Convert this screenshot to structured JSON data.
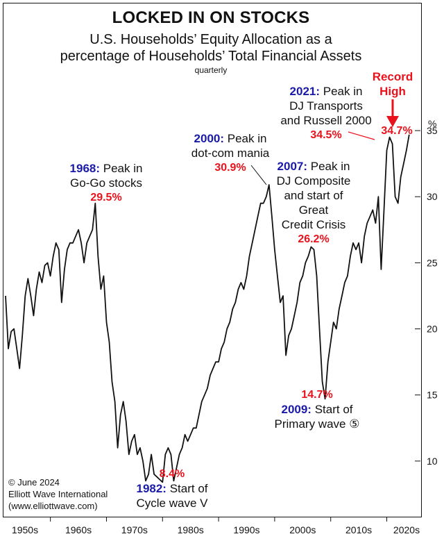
{
  "chart_data": {
    "type": "line",
    "title": "LOCKED IN ON STOCKS",
    "subtitle_line1": "U.S. Households’ Equity Allocation as a",
    "subtitle_line2": "percentage of Households’ Total Financial Assets",
    "frequency_note": "quarterly",
    "y_unit_label": "%",
    "ylim": [
      6,
      37
    ],
    "yticks": [
      10,
      15,
      20,
      25,
      30,
      35
    ],
    "xlim": [
      1952,
      2026
    ],
    "xtick_labels": [
      "1950s",
      "1960s",
      "1970s",
      "1980s",
      "1990s",
      "2000s",
      "2010s",
      "2020s"
    ],
    "grid": false,
    "series": [
      {
        "x": [
          1952.0,
          1952.5,
          1953.0,
          1953.5,
          1954.0,
          1954.5,
          1955.0,
          1955.5,
          1956.0,
          1956.5,
          1957.0,
          1957.5,
          1958.0,
          1958.5,
          1959.0,
          1959.5,
          1960.0,
          1960.5,
          1961.0,
          1961.5,
          1962.0,
          1962.5,
          1963.0,
          1963.5,
          1964.0,
          1964.5,
          1965.0,
          1965.5,
          1966.0,
          1966.5,
          1967.0,
          1967.5,
          1968.0,
          1968.5,
          1969.0,
          1969.5,
          1970.0,
          1970.5,
          1971.0,
          1971.5,
          1972.0,
          1972.5,
          1973.0,
          1973.5,
          1974.0,
          1974.5,
          1975.0,
          1975.5,
          1976.0,
          1976.5,
          1977.0,
          1977.5,
          1978.0,
          1978.5,
          1979.0,
          1979.5,
          1980.0,
          1980.5,
          1981.0,
          1981.5,
          1982.0,
          1982.5,
          1983.0,
          1983.5,
          1984.0,
          1984.5,
          1985.0,
          1985.5,
          1986.0,
          1986.5,
          1987.0,
          1987.5,
          1988.0,
          1988.5,
          1989.0,
          1989.5,
          1990.0,
          1990.5,
          1991.0,
          1991.5,
          1992.0,
          1992.5,
          1993.0,
          1993.5,
          1994.0,
          1994.5,
          1995.0,
          1995.5,
          1996.0,
          1996.5,
          1997.0,
          1997.5,
          1998.0,
          1998.5,
          1999.0,
          1999.5,
          2000.0,
          2000.5,
          2001.0,
          2001.5,
          2002.0,
          2002.5,
          2003.0,
          2003.5,
          2004.0,
          2004.5,
          2005.0,
          2005.5,
          2006.0,
          2006.5,
          2007.0,
          2007.5,
          2008.0,
          2008.5,
          2009.0,
          2009.5,
          2010.0,
          2010.5,
          2011.0,
          2011.5,
          2012.0,
          2012.5,
          2013.0,
          2013.5,
          2014.0,
          2014.5,
          2015.0,
          2015.5,
          2016.0,
          2016.5,
          2017.0,
          2017.5,
          2018.0,
          2018.5,
          2019.0,
          2019.5,
          2020.0,
          2020.5,
          2021.0,
          2021.5,
          2022.0,
          2022.5,
          2023.0,
          2023.5,
          2024.0
        ],
        "y": [
          22.5,
          18.5,
          19.8,
          20.0,
          18.5,
          17.0,
          19.5,
          22.5,
          23.8,
          22.5,
          21.0,
          23.0,
          24.3,
          23.5,
          24.8,
          25.0,
          24.0,
          25.5,
          26.5,
          26.0,
          22.0,
          24.5,
          26.0,
          26.5,
          26.5,
          27.0,
          27.5,
          26.5,
          25.0,
          26.5,
          27.0,
          27.5,
          29.5,
          25.5,
          23.0,
          24.0,
          20.5,
          19.0,
          16.0,
          14.5,
          11.0,
          13.5,
          14.5,
          13.0,
          10.5,
          11.5,
          12.0,
          10.5,
          11.0,
          10.0,
          8.5,
          9.0,
          10.5,
          9.0,
          8.8,
          8.6,
          8.4,
          10.5,
          11.0,
          10.5,
          8.5,
          9.5,
          10.5,
          11.0,
          12.0,
          11.5,
          12.0,
          12.5,
          12.5,
          13.5,
          14.5,
          15.0,
          15.5,
          16.5,
          17.0,
          17.5,
          17.5,
          18.5,
          19.0,
          20.0,
          20.5,
          21.5,
          22.0,
          23.0,
          23.5,
          23.0,
          24.0,
          25.5,
          26.5,
          27.5,
          28.5,
          29.5,
          29.5,
          30.0,
          30.9,
          28.5,
          26.0,
          24.0,
          22.0,
          22.5,
          18.0,
          19.5,
          20.0,
          21.0,
          22.0,
          23.5,
          24.0,
          25.0,
          25.5,
          26.2,
          26.0,
          24.0,
          20.0,
          16.0,
          14.7,
          17.5,
          19.0,
          20.5,
          20.0,
          21.5,
          22.5,
          23.5,
          24.0,
          25.5,
          26.5,
          26.0,
          26.5,
          25.0,
          27.0,
          28.0,
          28.5,
          29.0,
          28.0,
          30.0,
          24.5,
          29.0,
          33.5,
          34.5,
          34.0,
          30.0,
          29.5,
          31.5,
          32.5,
          33.5,
          34.7
        ],
        "color": "#111111"
      }
    ],
    "annotations": {
      "a1968": {
        "year": "1968:",
        "text_l1": " Peak in",
        "text_l2": "Go-Go stocks",
        "value": "29.5%"
      },
      "a1982": {
        "value": "8.4%",
        "year": "1982:",
        "text_l1": " Start of",
        "text_l2": "Cycle wave V"
      },
      "a2000": {
        "year": "2000:",
        "text_l1": " Peak in",
        "text_l2": "dot-com mania",
        "value": "30.9%"
      },
      "a2007": {
        "year": "2007:",
        "text_l1": " Peak in",
        "text_l2": "DJ Composite",
        "text_l3": "and start of",
        "text_l4": "Great",
        "text_l5": "Credit Crisis",
        "value": "26.2%"
      },
      "a2009": {
        "value": "14.7%",
        "year": "2009:",
        "text_l1": " Start of",
        "text_l2": "Primary wave ⑤"
      },
      "a2021": {
        "year": "2021:",
        "text_l1": " Peak in",
        "text_l2": "DJ Transports",
        "text_l3": "and Russell 2000",
        "value": "34.5%"
      },
      "record": {
        "line1": "Record",
        "line2": "High",
        "value": "34.7%"
      }
    },
    "credit": {
      "line1": "© June 2024",
      "line2": "Elliott Wave International",
      "line3": "(www.elliottwave.com)"
    },
    "colors": {
      "year_blue": "#1a1aa8",
      "value_red": "#e8121c",
      "line": "#111111"
    }
  }
}
